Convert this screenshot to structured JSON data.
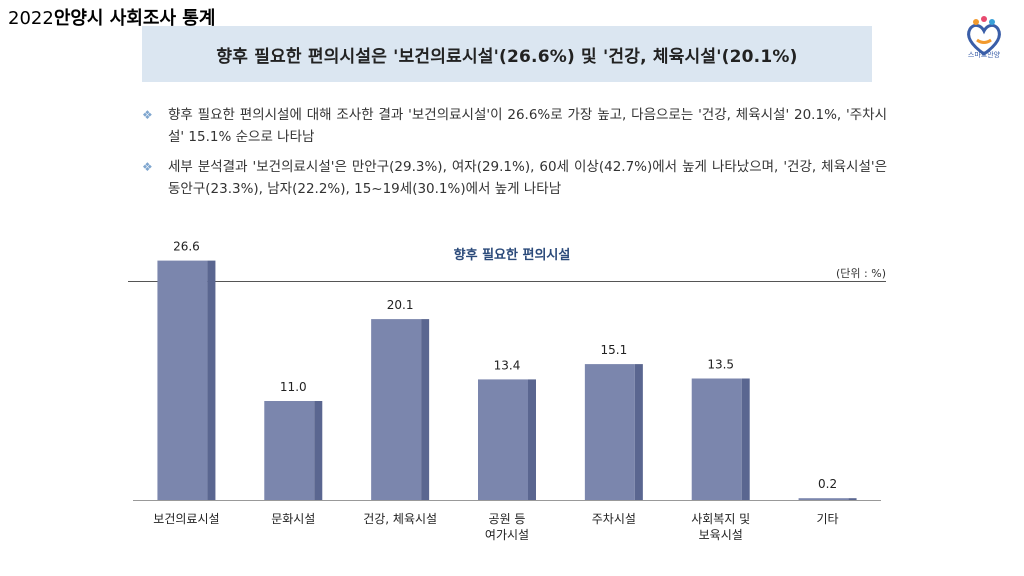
{
  "report_title_year": "2022",
  "report_title_rest": "안양시 사회조사 통계",
  "logo_text": "스마트안양",
  "headline": "향후 필요한 편의시설은 '보건의료시설'(26.6%) 및 '건강, 체육시설'(20.1%)",
  "bullets": [
    "향후 필요한 편의시설에 대해 조사한 결과 '보건의료시설'이 26.6%로 가장 높고, 다음으로는 '건강, 체육시설' 20.1%, '주차시설' 15.1% 순으로 나타남",
    "세부 분석결과 '보건의료시설'은 만안구(29.3%), 여자(29.1%), 60세 이상(42.7%)에서 높게 나타났으며, '건강, 체육시설'은 동안구(23.3%), 남자(22.2%), 15~19세(30.1%)에서 높게 나타남"
  ],
  "bullet_icon": "diamond-cluster-icon",
  "colors": {
    "bar": "#7b86ad",
    "bar_side": "#5a6690",
    "headline_bg": "#dbe6f1"
  },
  "chart_data": {
    "type": "bar",
    "title": "향후 필요한 편의시설",
    "unit": "(단위 : %)",
    "categories": [
      [
        "보건의료시설"
      ],
      [
        "문화시설"
      ],
      [
        "건강, 체육시설"
      ],
      [
        "공원 등",
        "여가시설"
      ],
      [
        "주차시설"
      ],
      [
        "사회복지 및",
        "보육시설"
      ],
      [
        "기타"
      ]
    ],
    "values": [
      26.6,
      11.0,
      20.1,
      13.4,
      15.1,
      13.5,
      0.2
    ],
    "value_labels": [
      "26.6",
      "11.0",
      "20.1",
      "13.4",
      "15.1",
      "13.5",
      "0.2"
    ],
    "ylim": [
      0,
      30
    ],
    "grid": false,
    "legend": "none"
  }
}
